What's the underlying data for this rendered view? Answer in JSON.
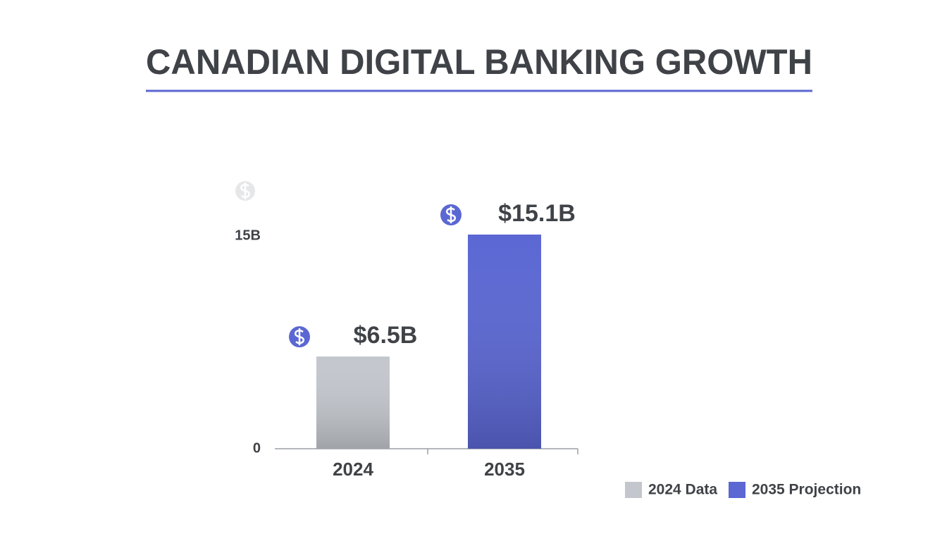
{
  "chart_data": {
    "type": "bar",
    "title": "CANADIAN DIGITAL BANKING GROWTH",
    "categories": [
      "2024",
      "2035"
    ],
    "values": [
      6.5,
      15.1
    ],
    "value_labels": [
      "$6.5B",
      "$15.1B"
    ],
    "colors": [
      "#c3c7cd",
      "#5b67d3"
    ],
    "legend": [
      "2024 Data",
      "2035 Projection"
    ],
    "ylim": [
      0,
      18
    ],
    "yticks": [
      0,
      {
        "value": 15,
        "label": "15B"
      }
    ]
  }
}
